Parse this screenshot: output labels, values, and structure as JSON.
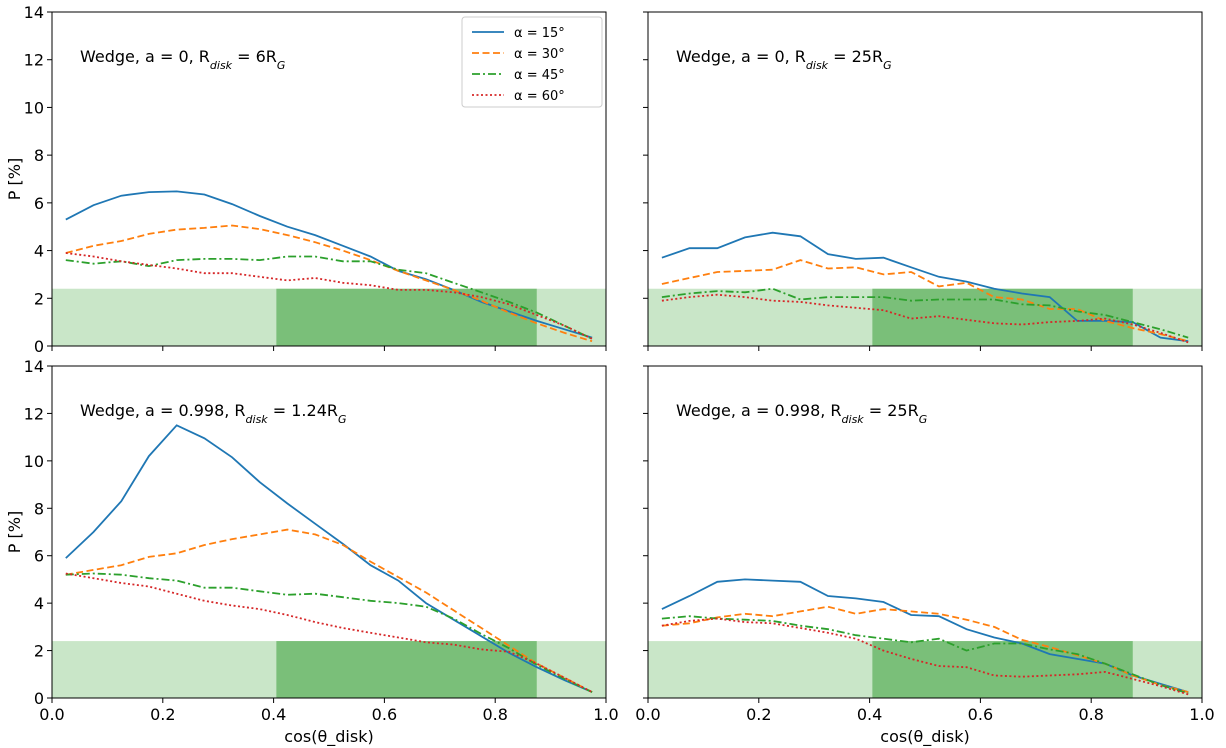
{
  "chart_data": {
    "type": "line",
    "shared_xlabel": "cos(θ_disk)",
    "shared_ylabel": "P [%]",
    "xlim": [
      0,
      1
    ],
    "ylim": [
      0,
      14
    ],
    "x_ticks": [
      0.0,
      0.2,
      0.4,
      0.6,
      0.8,
      1.0
    ],
    "x_tick_labels": [
      "0.0",
      "0.2",
      "0.4",
      "0.6",
      "0.8",
      "1.0"
    ],
    "y_ticks": [
      0,
      2,
      4,
      6,
      8,
      10,
      12,
      14
    ],
    "y_tick_labels": [
      "0",
      "2",
      "4",
      "6",
      "8",
      "10",
      "12",
      "14"
    ],
    "grid": false,
    "legend": {
      "placement": "top-right of top-left panel",
      "entries": [
        "α = 15°",
        "α = 30°",
        "α = 45°",
        "α = 60°"
      ]
    },
    "series_styles": [
      {
        "color": "#1f77b4",
        "dash": "solid"
      },
      {
        "color": "#ff7f0e",
        "dash": "dashed"
      },
      {
        "color": "#2ca02c",
        "dash": "dashdot"
      },
      {
        "color": "#d62728",
        "dash": "dotted"
      }
    ],
    "shaded_bands": {
      "light": {
        "x": [
          0.0,
          1.0
        ],
        "y": [
          0,
          2.4
        ],
        "color": "#c9e6c8"
      },
      "dark": {
        "x": [
          0.405,
          0.875
        ],
        "y": [
          0,
          2.4
        ],
        "color": "#7abf79"
      }
    },
    "x": [
      0.025,
      0.075,
      0.125,
      0.175,
      0.225,
      0.275,
      0.325,
      0.375,
      0.425,
      0.475,
      0.525,
      0.575,
      0.625,
      0.675,
      0.725,
      0.775,
      0.825,
      0.875,
      0.925,
      0.975
    ],
    "panels": [
      {
        "title_prefix": "Wedge, a = 0, R",
        "title_sub": "disk",
        "title_suffix": " = 6R",
        "title_sub2": "G",
        "series": [
          {
            "name": "α = 15°",
            "values": [
              5.3,
              5.9,
              6.3,
              6.45,
              6.48,
              6.35,
              5.95,
              5.45,
              5.0,
              4.65,
              4.2,
              3.75,
              3.15,
              2.8,
              2.35,
              1.85,
              1.45,
              1.05,
              0.7,
              0.35
            ]
          },
          {
            "name": "α = 30°",
            "values": [
              3.9,
              4.2,
              4.4,
              4.7,
              4.88,
              4.95,
              5.05,
              4.9,
              4.65,
              4.35,
              4.0,
              3.6,
              3.15,
              2.75,
              2.35,
              1.9,
              1.4,
              0.95,
              0.55,
              0.2
            ]
          },
          {
            "name": "α = 45°",
            "values": [
              3.6,
              3.45,
              3.55,
              3.35,
              3.6,
              3.65,
              3.65,
              3.6,
              3.75,
              3.75,
              3.55,
              3.55,
              3.2,
              3.05,
              2.65,
              2.25,
              1.85,
              1.4,
              0.85,
              0.3
            ]
          },
          {
            "name": "α = 60°",
            "values": [
              3.9,
              3.75,
              3.55,
              3.4,
              3.25,
              3.05,
              3.05,
              2.9,
              2.75,
              2.85,
              2.65,
              2.55,
              2.35,
              2.35,
              2.25,
              2.05,
              1.75,
              1.3,
              0.85,
              0.3
            ]
          }
        ]
      },
      {
        "title_prefix": "Wedge, a = 0, R",
        "title_sub": "disk",
        "title_suffix": " = 25R",
        "title_sub2": "G",
        "series": [
          {
            "name": "α = 15°",
            "values": [
              3.7,
              4.1,
              4.1,
              4.55,
              4.75,
              4.6,
              3.85,
              3.65,
              3.7,
              3.3,
              2.9,
              2.7,
              2.4,
              2.2,
              2.05,
              1.05,
              1.05,
              1.0,
              0.35,
              0.2
            ]
          },
          {
            "name": "α = 30°",
            "values": [
              2.6,
              2.85,
              3.1,
              3.15,
              3.2,
              3.6,
              3.25,
              3.3,
              3.0,
              3.1,
              2.5,
              2.65,
              2.05,
              1.95,
              1.55,
              1.55,
              1.05,
              0.75,
              0.5,
              0.2
            ]
          },
          {
            "name": "α = 45°",
            "values": [
              2.05,
              2.2,
              2.3,
              2.25,
              2.4,
              1.95,
              2.05,
              2.05,
              2.05,
              1.9,
              1.95,
              1.95,
              1.95,
              1.75,
              1.7,
              1.45,
              1.3,
              1.0,
              0.7,
              0.35
            ]
          },
          {
            "name": "α = 60°",
            "values": [
              1.9,
              2.05,
              2.15,
              2.05,
              1.9,
              1.85,
              1.7,
              1.6,
              1.5,
              1.15,
              1.25,
              1.1,
              0.95,
              0.9,
              1.0,
              1.05,
              1.15,
              0.9,
              0.55,
              0.15
            ]
          }
        ]
      },
      {
        "title_prefix": "Wedge, a = 0.998, R",
        "title_sub": "disk",
        "title_suffix": " = 1.24R",
        "title_sub2": "G",
        "series": [
          {
            "name": "α = 15°",
            "values": [
              5.9,
              7.0,
              8.3,
              10.2,
              11.5,
              10.95,
              10.15,
              9.1,
              8.2,
              7.35,
              6.5,
              5.6,
              4.95,
              4.0,
              3.3,
              2.6,
              1.9,
              1.3,
              0.75,
              0.25
            ]
          },
          {
            "name": "α = 30°",
            "values": [
              5.2,
              5.4,
              5.6,
              5.95,
              6.1,
              6.45,
              6.7,
              6.9,
              7.1,
              6.9,
              6.45,
              5.75,
              5.1,
              4.45,
              3.7,
              2.95,
              2.2,
              1.45,
              0.85,
              0.25
            ]
          },
          {
            "name": "α = 45°",
            "values": [
              5.2,
              5.25,
              5.2,
              5.05,
              4.95,
              4.65,
              4.65,
              4.5,
              4.35,
              4.4,
              4.25,
              4.1,
              4.0,
              3.85,
              3.35,
              2.7,
              2.1,
              1.4,
              0.8,
              0.25
            ]
          },
          {
            "name": "α = 60°",
            "values": [
              5.25,
              5.05,
              4.85,
              4.7,
              4.4,
              4.1,
              3.9,
              3.75,
              3.5,
              3.2,
              2.95,
              2.75,
              2.55,
              2.35,
              2.25,
              2.05,
              1.95,
              1.45,
              0.85,
              0.25
            ]
          }
        ]
      },
      {
        "title_prefix": "Wedge, a = 0.998, R",
        "title_sub": "disk",
        "title_suffix": " = 25R",
        "title_sub2": "G",
        "series": [
          {
            "name": "α = 15°",
            "values": [
              3.75,
              4.3,
              4.9,
              5.0,
              4.95,
              4.9,
              4.3,
              4.2,
              4.05,
              3.5,
              3.45,
              2.9,
              2.55,
              2.3,
              1.85,
              1.65,
              1.45,
              0.95,
              0.6,
              0.25
            ]
          },
          {
            "name": "α = 30°",
            "values": [
              3.05,
              3.15,
              3.4,
              3.55,
              3.45,
              3.65,
              3.85,
              3.55,
              3.75,
              3.65,
              3.55,
              3.3,
              3.0,
              2.45,
              2.15,
              1.8,
              1.45,
              0.95,
              0.55,
              0.25
            ]
          },
          {
            "name": "α = 45°",
            "values": [
              3.35,
              3.45,
              3.35,
              3.3,
              3.25,
              3.05,
              2.9,
              2.65,
              2.5,
              2.35,
              2.5,
              2.0,
              2.3,
              2.3,
              2.05,
              1.85,
              1.45,
              1.0,
              0.55,
              0.2
            ]
          },
          {
            "name": "α = 60°",
            "values": [
              3.05,
              3.25,
              3.35,
              3.2,
              3.15,
              2.95,
              2.75,
              2.5,
              2.0,
              1.65,
              1.35,
              1.3,
              0.95,
              0.9,
              0.95,
              1.0,
              1.1,
              0.8,
              0.5,
              0.15
            ]
          }
        ]
      }
    ]
  }
}
